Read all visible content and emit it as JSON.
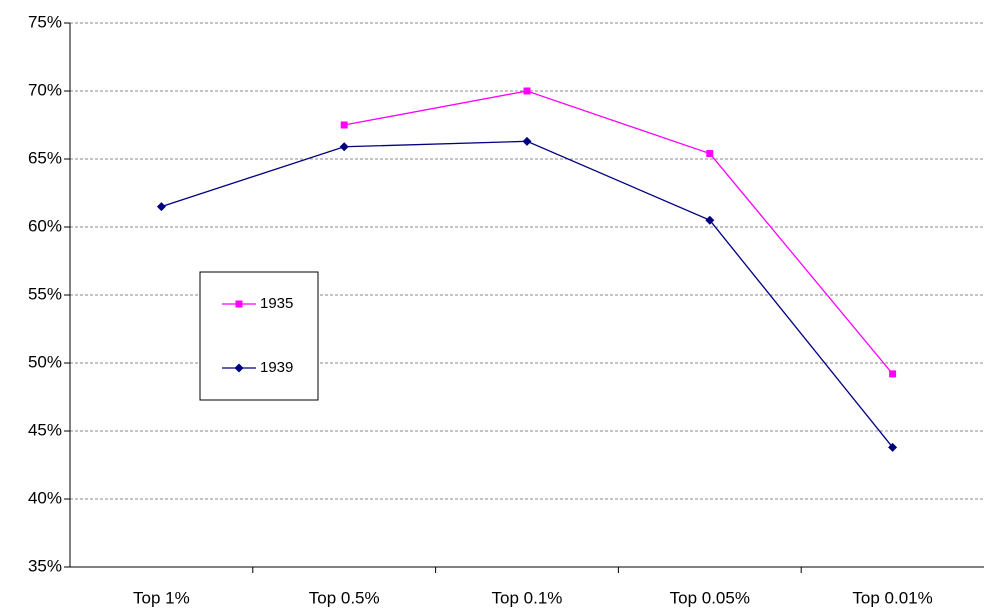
{
  "chart_data": {
    "type": "line",
    "categories": [
      "Top 1%",
      "Top 0.5%",
      "Top 0.1%",
      "Top 0.05%",
      "Top 0.01%"
    ],
    "series": [
      {
        "name": "1935",
        "color": "#ff00ff",
        "marker": "square",
        "values": [
          null,
          67.5,
          70.0,
          65.4,
          49.2
        ]
      },
      {
        "name": "1939",
        "color": "#000080",
        "marker": "diamond",
        "values": [
          61.5,
          65.9,
          66.3,
          60.5,
          43.8
        ]
      }
    ],
    "ylim": [
      35,
      75
    ],
    "yticks": [
      {
        "value": 35,
        "label": "35%"
      },
      {
        "value": 40,
        "label": "40%"
      },
      {
        "value": 45,
        "label": "45%"
      },
      {
        "value": 50,
        "label": "50%"
      },
      {
        "value": 55,
        "label": "55%"
      },
      {
        "value": 60,
        "label": "60%"
      },
      {
        "value": 65,
        "label": "65%"
      },
      {
        "value": 70,
        "label": "70%"
      },
      {
        "value": 75,
        "label": "75%"
      }
    ],
    "grid": true
  }
}
